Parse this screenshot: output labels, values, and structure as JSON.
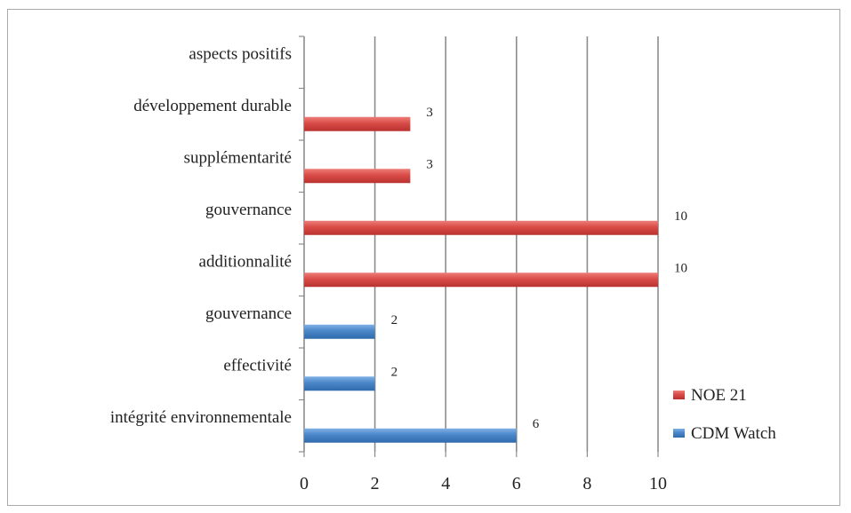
{
  "chart_data": {
    "type": "bar",
    "orientation": "horizontal",
    "categories": [
      "aspects positifs",
      "développement durable",
      "supplémentarité",
      "gouvernance",
      "additionnalité",
      "gouvernance",
      "effectivité",
      "intégrité environnementale"
    ],
    "series": [
      {
        "name": "NOE 21",
        "color": "#d94b47",
        "values": [
          null,
          3,
          3,
          10,
          10,
          null,
          null,
          null
        ]
      },
      {
        "name": "CDM Watch",
        "color": "#4a86c8",
        "values": [
          null,
          null,
          null,
          null,
          null,
          2,
          2,
          6
        ]
      }
    ],
    "x_ticks": [
      "0",
      "2",
      "4",
      "6",
      "8",
      "10"
    ],
    "xlim": [
      0,
      10
    ],
    "grid": true,
    "legend_position": "right"
  }
}
